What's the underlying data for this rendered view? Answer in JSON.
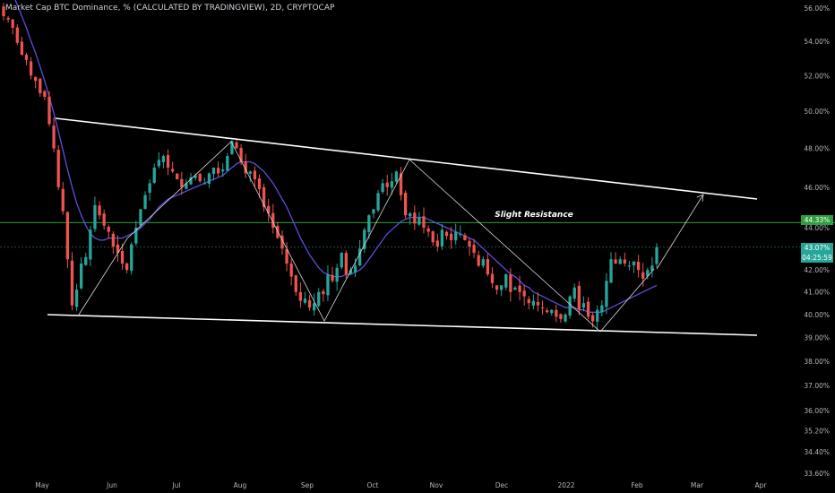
{
  "header": {
    "title": "Market Cap BTC Dominance, % (CALCULATED BY TRADINGVIEW), 2D, CRYPTOCAP"
  },
  "price_tags": {
    "resistance": "44.33%",
    "last": "43.07%",
    "countdown": "04:25:59"
  },
  "colors": {
    "background": "#000000",
    "bull": "#26a69a",
    "bear": "#ef5350",
    "ma": "#5b4fd9",
    "trendline": "#ffffff",
    "resistance_line": "#2e9e3e",
    "axis_text": "#b2b5be"
  },
  "chart_data": {
    "type": "candlestick",
    "title": "Market Cap BTC Dominance, % (CALCULATED BY TRADINGVIEW), 2D, CRYPTOCAP",
    "x_tick_labels": [
      "May",
      "Jun",
      "Jul",
      "Aug",
      "Sep",
      "Oct",
      "Nov",
      "Dec",
      "2022",
      "Feb",
      "Mar",
      "Apr"
    ],
    "y_tick_labels": [
      "56.00%",
      "54.00%",
      "52.00%",
      "50.00%",
      "48.00%",
      "46.00%",
      "44.00%",
      "42.00%",
      "41.00%",
      "40.00%",
      "39.00%",
      "38.00%",
      "37.00%",
      "36.00%",
      "35.20%",
      "34.40%",
      "33.60%"
    ],
    "y_scale": "log",
    "y_range": [
      33.3,
      56.6
    ],
    "grid": false,
    "close_series": [
      55.5,
      55.3,
      54.8,
      53.9,
      53.2,
      52.9,
      52.0,
      51.7,
      51.0,
      50.8,
      49.3,
      48.0,
      46.0,
      44.8,
      42.5,
      40.4,
      41.1,
      42.3,
      42.6,
      43.9,
      45.1,
      44.6,
      44.1,
      43.8,
      43.1,
      42.8,
      42.3,
      42.0,
      43.2,
      44.0,
      44.9,
      45.6,
      46.2,
      47.0,
      47.4,
      47.6,
      47.0,
      46.8,
      46.4,
      46.0,
      46.2,
      46.5,
      46.6,
      46.3,
      46.2,
      46.7,
      47.0,
      46.7,
      46.9,
      47.6,
      48.4,
      48.0,
      47.3,
      46.7,
      46.8,
      46.4,
      45.9,
      45.0,
      44.7,
      44.0,
      43.5,
      43.0,
      42.3,
      41.7,
      41.0,
      40.6,
      40.7,
      40.3,
      40.5,
      41.0,
      40.9,
      41.8,
      41.5,
      42.1,
      42.8,
      41.8,
      42.0,
      42.2,
      43.0,
      43.9,
      44.6,
      44.9,
      45.7,
      46.2,
      46.0,
      46.3,
      46.8,
      45.6,
      44.6,
      44.7,
      44.2,
      44.5,
      44.0,
      43.8,
      43.3,
      43.1,
      43.9,
      43.6,
      43.4,
      43.8,
      43.7,
      43.4,
      43.1,
      42.8,
      42.2,
      42.5,
      41.8,
      41.4,
      41.1,
      41.3,
      41.8,
      41.0,
      41.2,
      41.0,
      40.8,
      40.5,
      40.6,
      40.4,
      40.3,
      40.1,
      40.2,
      39.9,
      39.8,
      40.0,
      40.8,
      41.2,
      40.2,
      40.5,
      39.9,
      39.7,
      40.2,
      40.4,
      41.5,
      42.5,
      42.3,
      42.5,
      42.3,
      42.2,
      42.4,
      42.0,
      41.6,
      42.0,
      42.2,
      43.07
    ],
    "ma_series": [
      58.0,
      57.5,
      56.9,
      56.2,
      55.5,
      54.8,
      54.0,
      53.3,
      52.5,
      51.7,
      50.8,
      49.9,
      48.9,
      47.9,
      46.9,
      46.0,
      45.2,
      44.6,
      44.1,
      43.7,
      43.5,
      43.4,
      43.4,
      43.5,
      43.5,
      43.5,
      43.5,
      43.6,
      43.7,
      43.8,
      44.0,
      44.2,
      44.4,
      44.7,
      45.0,
      45.2,
      45.4,
      45.5,
      45.6,
      45.7,
      45.8,
      45.9,
      46.0,
      46.1,
      46.2,
      46.3,
      46.4,
      46.5,
      46.6,
      46.8,
      47.0,
      47.2,
      47.3,
      47.3,
      47.3,
      47.2,
      47.0,
      46.8,
      46.5,
      46.2,
      45.8,
      45.4,
      45.0,
      44.5,
      44.0,
      43.5,
      43.1,
      42.7,
      42.4,
      42.1,
      41.9,
      41.8,
      41.7,
      41.7,
      41.7,
      41.8,
      41.8,
      41.9,
      42.0,
      42.2,
      42.5,
      42.8,
      43.1,
      43.4,
      43.7,
      43.9,
      44.1,
      44.3,
      44.4,
      44.5,
      44.5,
      44.5,
      44.5,
      44.4,
      44.3,
      44.2,
      44.1,
      44.0,
      43.9,
      43.8,
      43.7,
      43.6,
      43.5,
      43.4,
      43.2,
      43.0,
      42.8,
      42.6,
      42.4,
      42.2,
      42.0,
      41.8,
      41.7,
      41.5,
      41.3,
      41.2,
      41.0,
      40.9,
      40.8,
      40.7,
      40.6,
      40.5,
      40.4,
      40.3,
      40.3,
      40.3,
      40.2,
      40.2,
      40.1,
      40.1,
      40.1,
      40.1,
      40.2,
      40.3,
      40.4,
      40.5,
      40.6,
      40.7,
      40.8,
      40.9,
      41.0,
      41.1,
      41.2,
      41.3
    ],
    "resistance_level": 44.33,
    "last_price": 43.07,
    "annotations": [
      "Slight Resistance"
    ]
  }
}
